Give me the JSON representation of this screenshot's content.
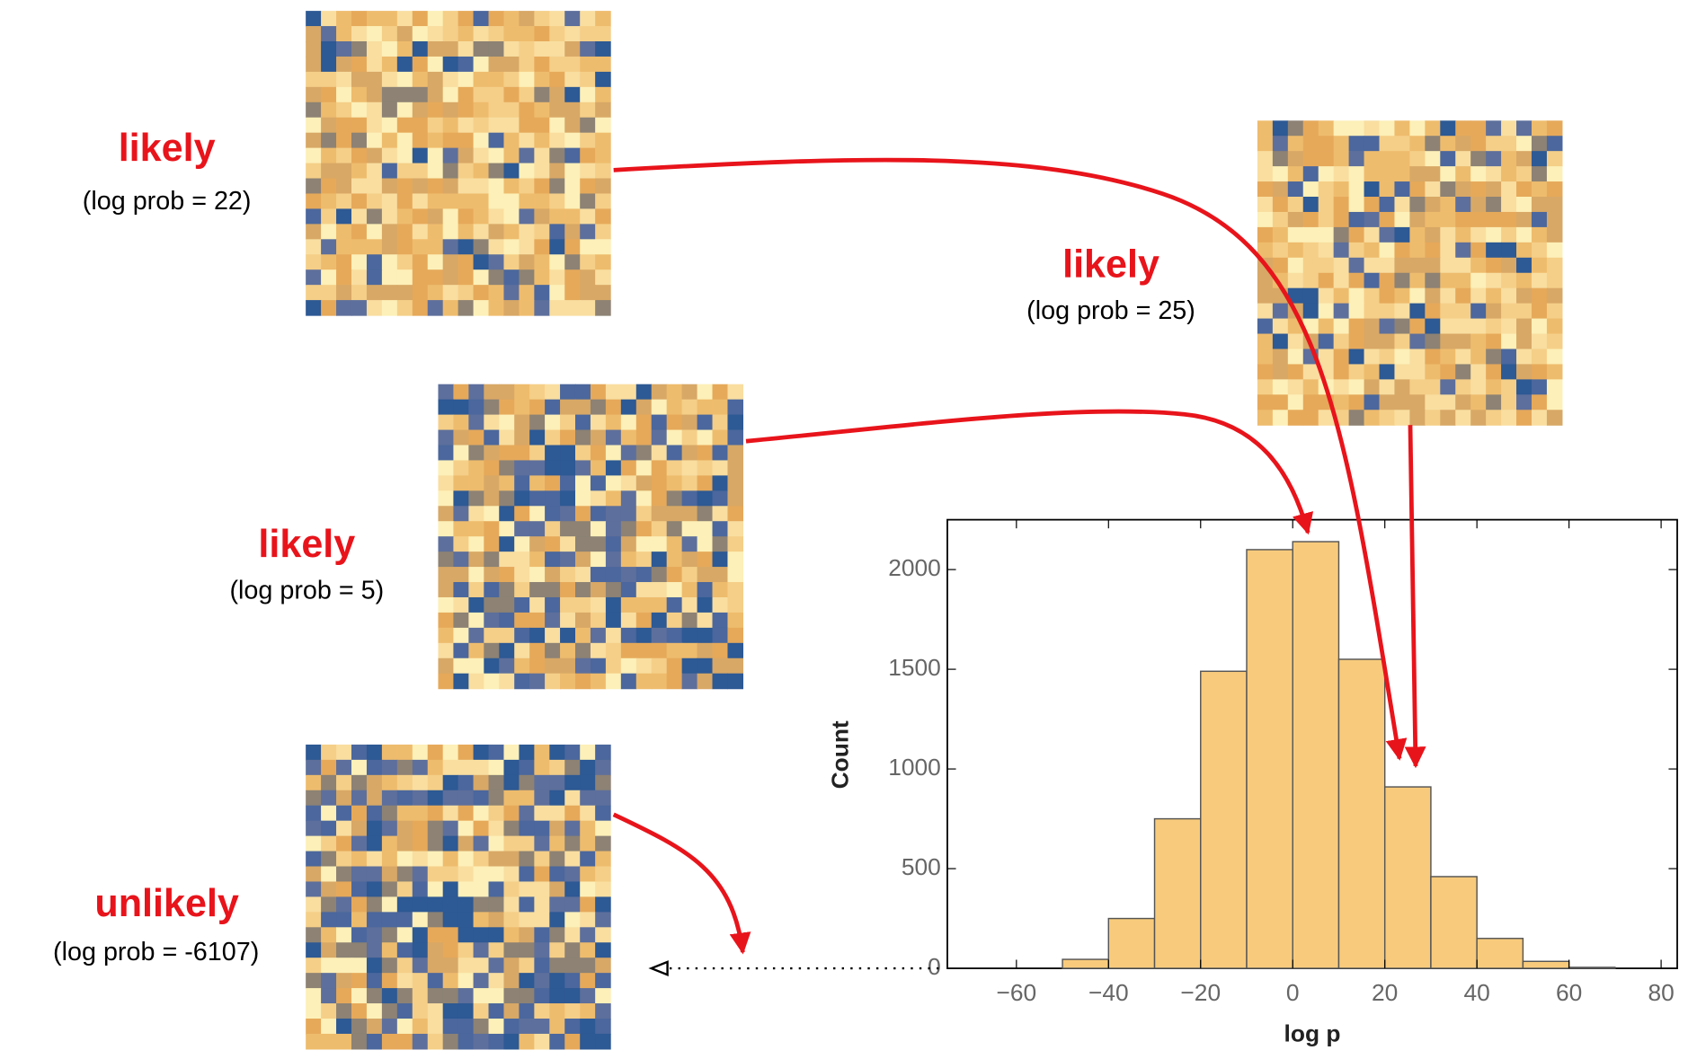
{
  "chart_data": {
    "type": "histogram",
    "x_label": "log p",
    "y_label": "Count",
    "bins": [
      -50,
      -40,
      -30,
      -20,
      -10,
      0,
      10,
      20,
      30,
      40,
      50,
      60,
      70
    ],
    "values": [
      45,
      250,
      750,
      1490,
      2100,
      2140,
      1550,
      910,
      460,
      150,
      35,
      5
    ],
    "color": "#f8cb7c",
    "xlim": [
      -75,
      83.5
    ],
    "ylim": [
      0,
      2250
    ],
    "xticks": [
      {
        "value": -60,
        "label": "−60"
      },
      {
        "value": -40,
        "label": "−40"
      },
      {
        "value": -20,
        "label": "−20"
      },
      0,
      20,
      40,
      60,
      80
    ],
    "yticks": [
      0,
      500,
      1000,
      1500,
      2000
    ],
    "annotations": [
      {
        "label": "likely",
        "detail": "(log prob = 22)"
      },
      {
        "label": "likely",
        "detail": "(log prob = 25)"
      },
      {
        "label": "likely",
        "detail": "(log prob = 5)"
      },
      {
        "label": "unlikely",
        "detail": "(log prob = -6107)"
      }
    ]
  }
}
